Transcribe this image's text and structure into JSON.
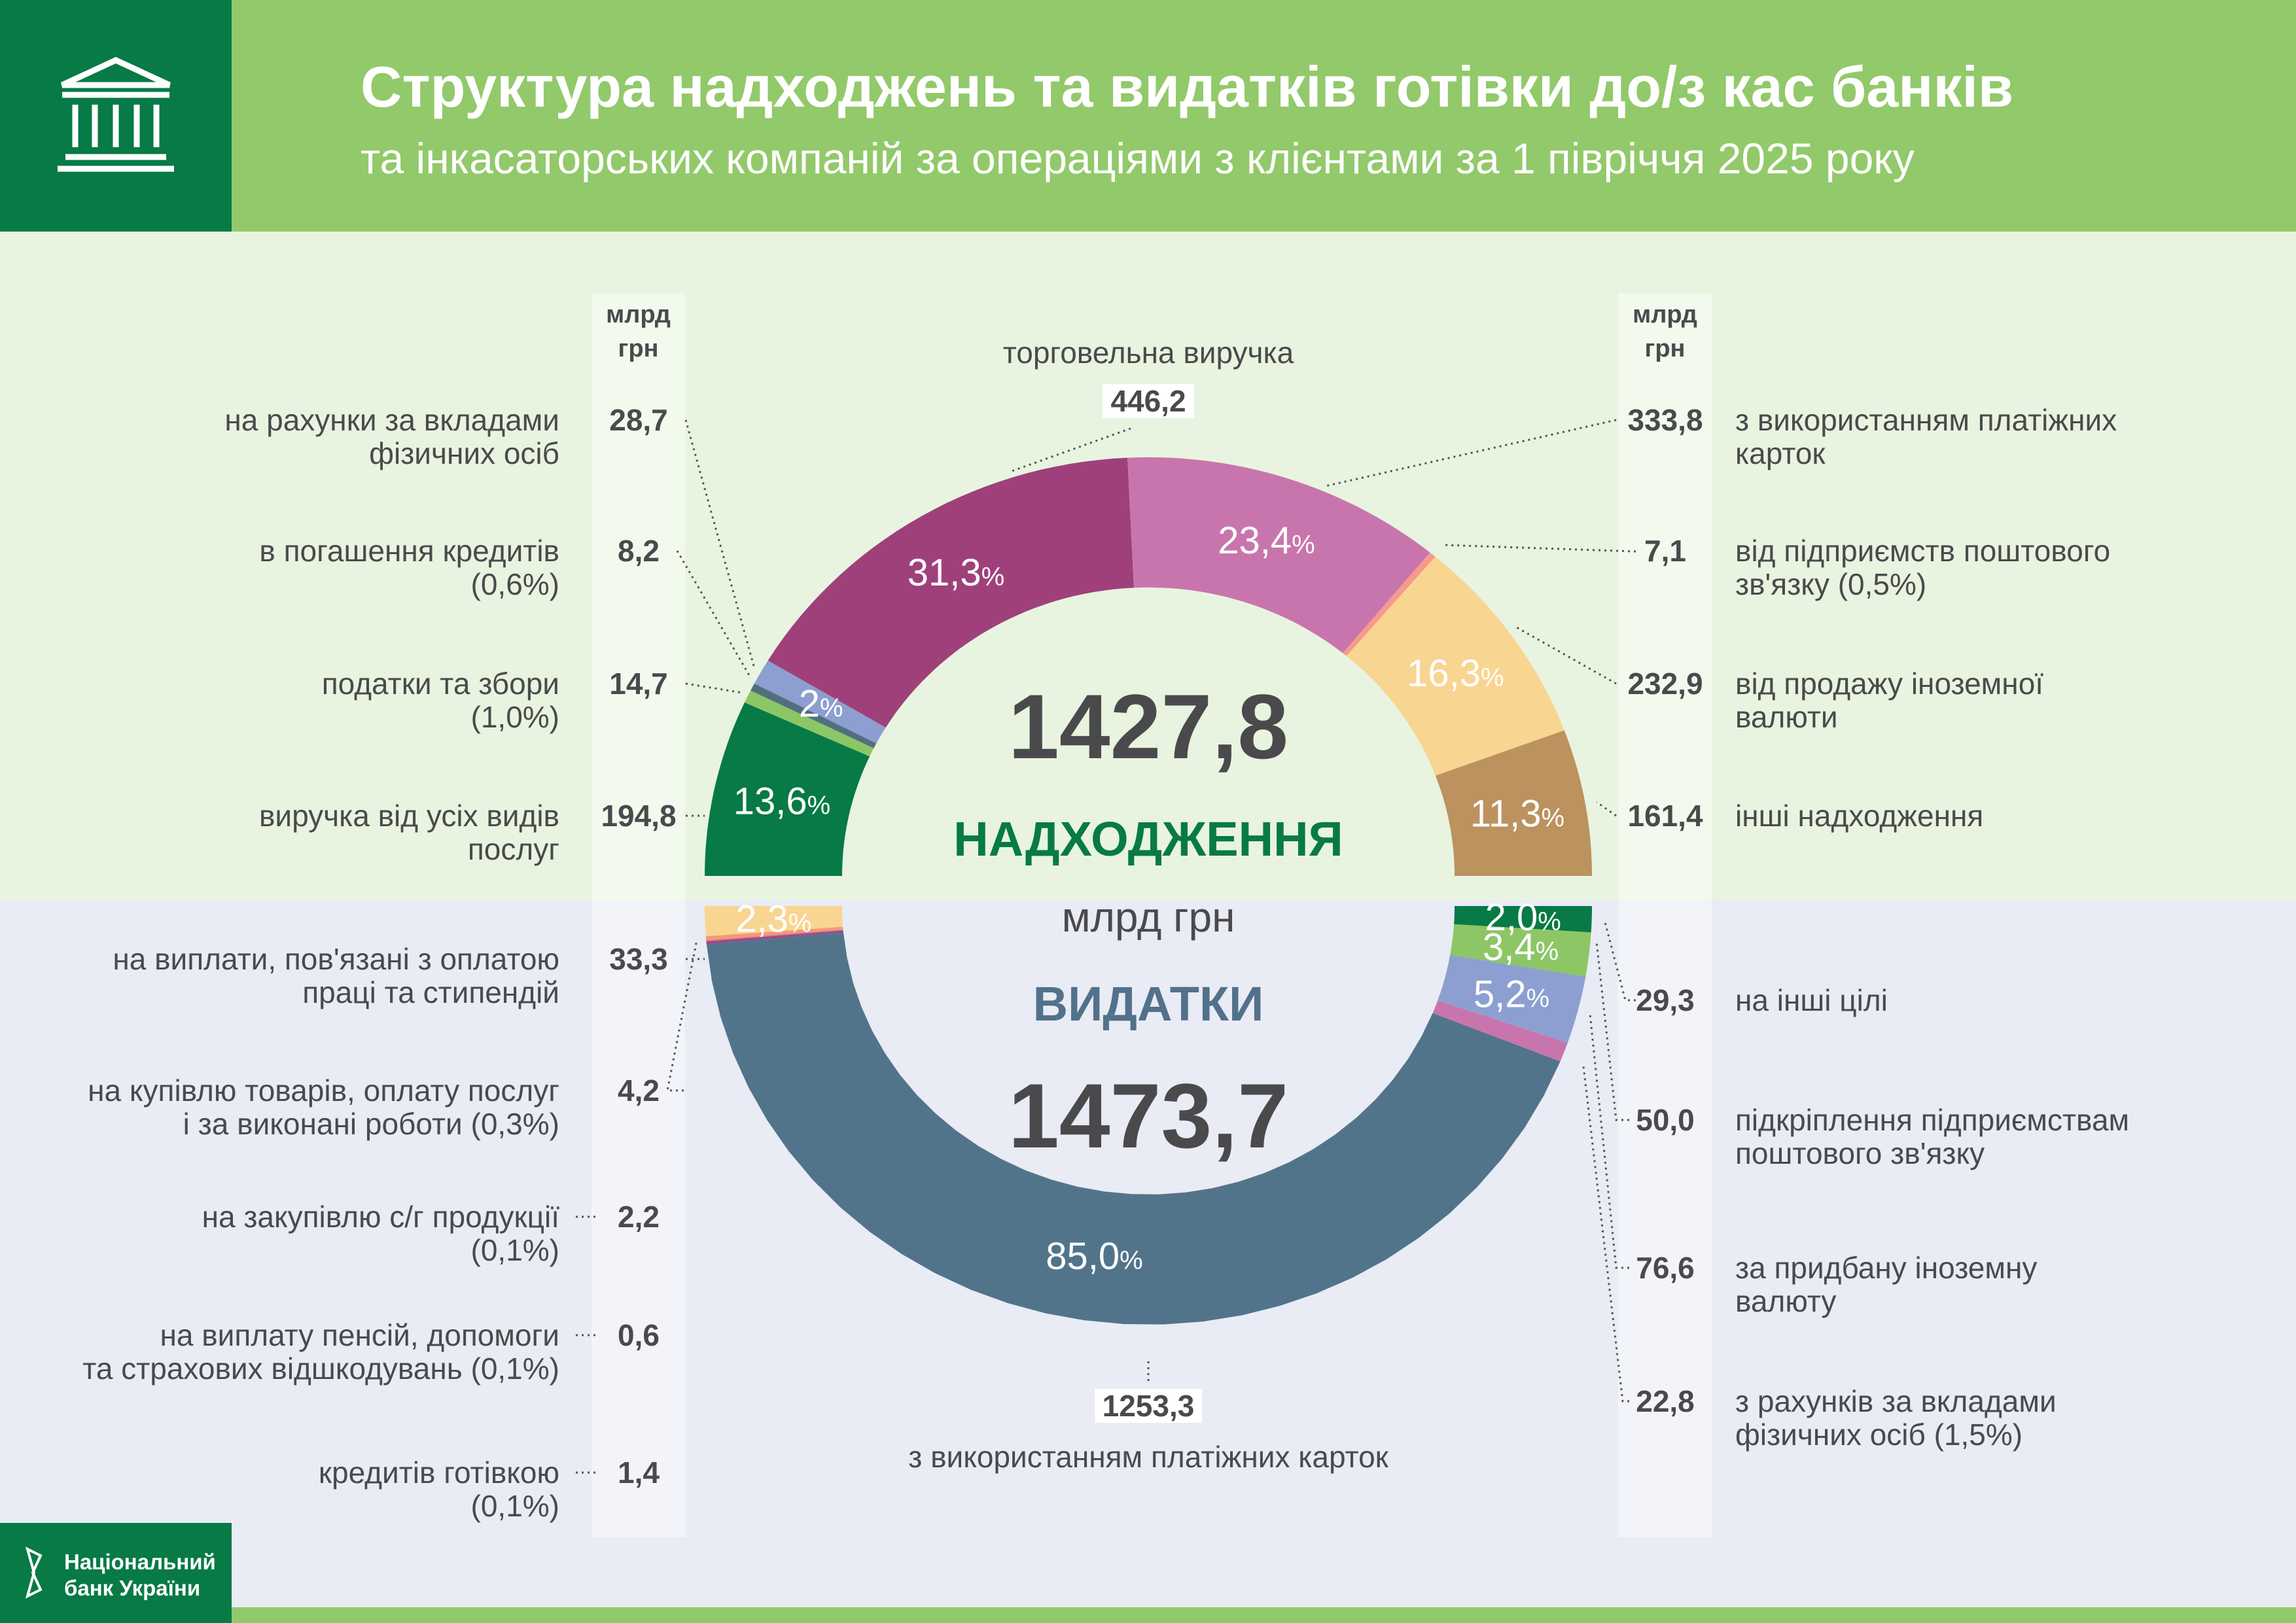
{
  "header": {
    "title": "Структура надходжень та видатків готівки до/з кас банків",
    "subtitle": "та інкасаторських компаній за операціями з клієнтами за 1 півріччя 2025 року"
  },
  "unit_col": "млрд\nгрн",
  "footer": {
    "logo_text_1": "Національний",
    "logo_text_2": "банк України"
  },
  "colors": {
    "header": "#92c96a",
    "brand": "#077a45",
    "upper_bg": "#e8f4df",
    "lower_bg": "#e9ebf5",
    "expense_title": "#52718a"
  },
  "chart_data": [
    {
      "type": "pie",
      "variant": "half-donut-top",
      "title": "НАДХОДЖЕННЯ",
      "total": "1427,8",
      "unit": "млрд грн",
      "segments": [
        {
          "label": "виручка від усіх видів послуг",
          "value": 194.8,
          "value_text": "194,8",
          "pct": 13.6,
          "pct_text": "13,6",
          "color": "#077a45",
          "show_pct": true
        },
        {
          "label": "податки та збори (1,0%)",
          "value": 14.7,
          "value_text": "14,7",
          "pct": 1.0,
          "color": "#8cc665",
          "show_pct": false
        },
        {
          "label": "в погашення кредитів (0,6%)",
          "value": 8.2,
          "value_text": "8,2",
          "pct": 0.6,
          "color": "#51707f",
          "show_pct": false
        },
        {
          "label": "на рахунки за вкладами фізичних осіб",
          "value": 28.7,
          "value_text": "28,7",
          "pct": 2.0,
          "pct_text": "2",
          "color": "#8d9fd0",
          "show_pct": true
        },
        {
          "label": "торговельна виручка",
          "value": 446.2,
          "value_text": "446,2",
          "pct": 31.3,
          "pct_text": "31,3",
          "color": "#9f407b",
          "show_pct": true
        },
        {
          "label": "з використанням платіжних карток",
          "value": 333.8,
          "value_text": "333,8",
          "pct": 23.4,
          "pct_text": "23,4",
          "color": "#c975ad",
          "show_pct": true
        },
        {
          "label": "від підприємств поштового зв'язку (0,5%)",
          "value": 7.1,
          "value_text": "7,1",
          "pct": 0.5,
          "color": "#f59a8c",
          "show_pct": false
        },
        {
          "label": "від продажу іноземної валюти",
          "value": 232.9,
          "value_text": "232,9",
          "pct": 16.3,
          "pct_text": "16,3",
          "color": "#f9d592",
          "show_pct": true
        },
        {
          "label": "інші надходження",
          "value": 161.4,
          "value_text": "161,4",
          "pct": 11.3,
          "pct_text": "11,3",
          "color": "#bc925f",
          "show_pct": true
        }
      ]
    },
    {
      "type": "pie",
      "variant": "half-donut-bottom",
      "title": "ВИДАТКИ",
      "total": "1473,7",
      "unit": "млрд грн",
      "segments": [
        {
          "label": "на виплати, пов'язані з оплатою праці та стипендій",
          "value": 33.3,
          "value_text": "33,3",
          "pct": 2.3,
          "pct_text": "2,3",
          "color": "#f9d592",
          "show_pct": true
        },
        {
          "label": "на купівлю товарів, оплату послуг і за виконані роботи (0,3%)",
          "value": 4.2,
          "value_text": "4,2",
          "pct": 0.3,
          "color": "#f59a6c",
          "show_pct": false
        },
        {
          "label": "на закупівлю с/г продукції (0,1%)",
          "value": 2.2,
          "value_text": "2,2",
          "pct": 0.1,
          "color": "#c975ad",
          "show_pct": false
        },
        {
          "label": "на виплату пенсій, допомоги та страхових відшкодувань (0,1%)",
          "value": 0.6,
          "value_text": "0,6",
          "pct": 0.1,
          "color": "#9f407b",
          "show_pct": false
        },
        {
          "label": "кредитів готівкою (0,1%)",
          "value": 1.4,
          "value_text": "1,4",
          "pct": 0.1,
          "color": "#9f407b",
          "show_pct": false
        },
        {
          "label": "з використанням платіжних карток",
          "value": 1253.3,
          "value_text": "1253,3",
          "pct": 85.0,
          "pct_text": "85,0",
          "color": "#52748a",
          "show_pct": true
        },
        {
          "label": "з рахунків за вкладами фізичних осіб (1,5%)",
          "value": 22.8,
          "value_text": "22,8",
          "pct": 1.5,
          "color": "#c975ad",
          "show_pct": false
        },
        {
          "label": "за придбану іноземну валюту",
          "value": 76.6,
          "value_text": "76,6",
          "pct": 5.2,
          "pct_text": "5,2",
          "color": "#8d9fd0",
          "show_pct": true
        },
        {
          "label": "підкріплення підприємствам поштового зв'язку",
          "value": 50.0,
          "value_text": "50,0",
          "pct": 3.4,
          "pct_text": "3,4",
          "color": "#8cc665",
          "show_pct": true
        },
        {
          "label": "на інші цілі",
          "value": 29.3,
          "value_text": "29,3",
          "pct": 2.0,
          "pct_text": "2,0",
          "color": "#077a45",
          "show_pct": true
        }
      ]
    }
  ],
  "labels": {
    "in_left": [
      {
        "l1": "на рахунки за вкладами",
        "l2": "фізичних осіб",
        "v": "28,7"
      },
      {
        "l1": "в погашення кредитів",
        "l2": "(0,6%)",
        "v": "8,2"
      },
      {
        "l1": "податки та збори",
        "l2": "(1,0%)",
        "v": "14,7"
      },
      {
        "l1": "виручка від усіх видів",
        "l2": "послуг",
        "v": "194,8"
      }
    ],
    "in_right": [
      {
        "l1": "з використанням платіжних",
        "l2": "карток",
        "v": "333,8"
      },
      {
        "l1": "від підприємств поштового",
        "l2": "зв'язку (0,5%)",
        "v": "7,1"
      },
      {
        "l1": "від продажу іноземної",
        "l2": "валюти",
        "v": "232,9"
      },
      {
        "l1": "інші надходження",
        "l2": "",
        "v": "161,4"
      }
    ],
    "in_top": {
      "label": "торговельна виручка",
      "v": "446,2"
    },
    "out_left": [
      {
        "l1": "на виплати, пов'язані з оплатою",
        "l2": "праці та стипендій",
        "v": "33,3"
      },
      {
        "l1": "на купівлю товарів, оплату послуг",
        "l2": "і за виконані роботи (0,3%)",
        "v": "4,2"
      },
      {
        "l1": "на закупівлю с/г продукції",
        "l2": "(0,1%)",
        "v": "2,2"
      },
      {
        "l1": "на виплату пенсій, допомоги",
        "l2": "та страхових відшкодувань (0,1%)",
        "v": "0,6"
      },
      {
        "l1": "кредитів готівкою",
        "l2": "(0,1%)",
        "v": "1,4"
      }
    ],
    "out_right": [
      {
        "l1": "на інші цілі",
        "l2": "",
        "v": "29,3"
      },
      {
        "l1": "підкріплення підприємствам",
        "l2": "поштового зв'язку",
        "v": "50,0"
      },
      {
        "l1": "за придбану іноземну",
        "l2": "валюту",
        "v": "76,6"
      },
      {
        "l1": "з рахунків за вкладами",
        "l2": "фізичних осіб (1,5%)",
        "v": "22,8"
      }
    ],
    "out_bottom": {
      "label": "з використанням платіжних карток",
      "v": "1253,3"
    }
  }
}
